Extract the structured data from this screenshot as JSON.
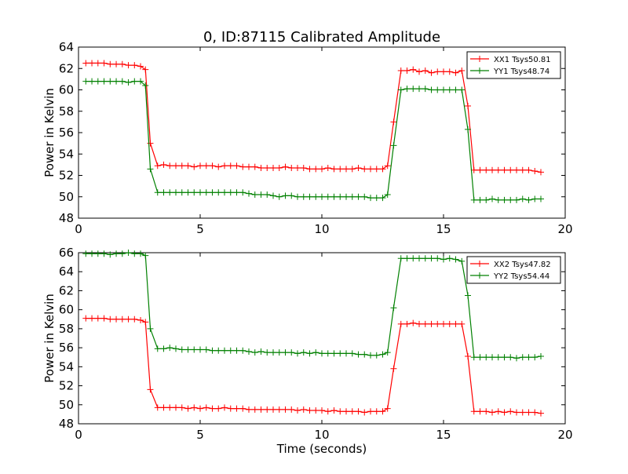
{
  "figure": {
    "title": "0, ID:87115 Calibrated Amplitude"
  },
  "chart_data": [
    {
      "type": "line",
      "xlabel": "",
      "ylabel": "Power in Kelvin",
      "xlim": [
        0,
        20
      ],
      "ylim": [
        48,
        64
      ],
      "xticks": [
        0,
        5,
        10,
        15,
        20
      ],
      "yticks": [
        48,
        50,
        52,
        54,
        56,
        58,
        60,
        62,
        64
      ],
      "grid": false,
      "legend": "top-right",
      "x": [
        0.3,
        0.55,
        0.8,
        1.05,
        1.3,
        1.55,
        1.8,
        2.05,
        2.3,
        2.55,
        2.75,
        2.95,
        3.25,
        3.5,
        3.75,
        4.0,
        4.25,
        4.5,
        4.75,
        5.0,
        5.25,
        5.5,
        5.75,
        6.0,
        6.25,
        6.5,
        6.75,
        7.0,
        7.25,
        7.5,
        7.75,
        8.0,
        8.25,
        8.5,
        8.75,
        9.0,
        9.25,
        9.5,
        9.75,
        10.0,
        10.25,
        10.5,
        10.75,
        11.0,
        11.25,
        11.5,
        11.75,
        12.0,
        12.25,
        12.5,
        12.7,
        12.95,
        13.25,
        13.5,
        13.75,
        14.0,
        14.25,
        14.5,
        14.75,
        15.0,
        15.25,
        15.5,
        15.75,
        16.0,
        16.25,
        16.5,
        16.75,
        17.0,
        17.25,
        17.5,
        17.75,
        18.0,
        18.25,
        18.5,
        18.75,
        19.0
      ],
      "series": [
        {
          "name": "XX1 Tsys50.81",
          "color": "#ff0000",
          "values": [
            62.5,
            62.5,
            62.5,
            62.5,
            62.4,
            62.4,
            62.4,
            62.3,
            62.3,
            62.2,
            61.9,
            55.0,
            52.9,
            53.0,
            52.9,
            52.9,
            52.9,
            52.9,
            52.8,
            52.9,
            52.9,
            52.9,
            52.8,
            52.9,
            52.9,
            52.9,
            52.8,
            52.8,
            52.8,
            52.7,
            52.7,
            52.7,
            52.7,
            52.8,
            52.7,
            52.7,
            52.7,
            52.6,
            52.6,
            52.6,
            52.7,
            52.6,
            52.6,
            52.6,
            52.6,
            52.7,
            52.6,
            52.6,
            52.6,
            52.6,
            52.9,
            57.0,
            61.8,
            61.8,
            61.9,
            61.7,
            61.8,
            61.6,
            61.7,
            61.7,
            61.7,
            61.6,
            61.8,
            58.5,
            52.5,
            52.5,
            52.5,
            52.5,
            52.5,
            52.5,
            52.5,
            52.5,
            52.5,
            52.5,
            52.4,
            52.3
          ]
        },
        {
          "name": "YY1 Tsys48.74",
          "color": "#008000",
          "values": [
            60.8,
            60.8,
            60.8,
            60.8,
            60.8,
            60.8,
            60.8,
            60.7,
            60.8,
            60.8,
            60.4,
            52.6,
            50.4,
            50.4,
            50.4,
            50.4,
            50.4,
            50.4,
            50.4,
            50.4,
            50.4,
            50.4,
            50.4,
            50.4,
            50.4,
            50.4,
            50.4,
            50.3,
            50.2,
            50.2,
            50.2,
            50.1,
            50.0,
            50.1,
            50.1,
            50.0,
            50.0,
            50.0,
            50.0,
            50.0,
            50.0,
            50.0,
            50.0,
            50.0,
            50.0,
            50.0,
            50.0,
            49.9,
            49.9,
            49.9,
            50.2,
            54.8,
            60.0,
            60.1,
            60.1,
            60.1,
            60.1,
            60.0,
            60.0,
            60.0,
            60.0,
            60.0,
            60.0,
            56.3,
            49.7,
            49.7,
            49.7,
            49.8,
            49.7,
            49.7,
            49.7,
            49.7,
            49.8,
            49.7,
            49.8,
            49.8
          ]
        }
      ]
    },
    {
      "type": "line",
      "xlabel": "Time (seconds)",
      "ylabel": "Power in Kelvin",
      "xlim": [
        0,
        20
      ],
      "ylim": [
        48,
        66
      ],
      "xticks": [
        0,
        5,
        10,
        15,
        20
      ],
      "yticks": [
        48,
        50,
        52,
        54,
        56,
        58,
        60,
        62,
        64,
        66
      ],
      "grid": false,
      "legend": "top-right",
      "x": [
        0.3,
        0.55,
        0.8,
        1.05,
        1.3,
        1.55,
        1.8,
        2.05,
        2.3,
        2.55,
        2.75,
        2.95,
        3.25,
        3.5,
        3.75,
        4.0,
        4.25,
        4.5,
        4.75,
        5.0,
        5.25,
        5.5,
        5.75,
        6.0,
        6.25,
        6.5,
        6.75,
        7.0,
        7.25,
        7.5,
        7.75,
        8.0,
        8.25,
        8.5,
        8.75,
        9.0,
        9.25,
        9.5,
        9.75,
        10.0,
        10.25,
        10.5,
        10.75,
        11.0,
        11.25,
        11.5,
        11.75,
        12.0,
        12.25,
        12.5,
        12.7,
        12.95,
        13.25,
        13.5,
        13.75,
        14.0,
        14.25,
        14.5,
        14.75,
        15.0,
        15.25,
        15.5,
        15.75,
        16.0,
        16.25,
        16.5,
        16.75,
        17.0,
        17.25,
        17.5,
        17.75,
        18.0,
        18.25,
        18.5,
        18.75,
        19.0
      ],
      "series": [
        {
          "name": "XX2 Tsys47.82",
          "color": "#ff0000",
          "values": [
            59.1,
            59.1,
            59.1,
            59.1,
            59.0,
            59.0,
            59.0,
            59.0,
            59.0,
            58.9,
            58.7,
            51.6,
            49.7,
            49.7,
            49.7,
            49.7,
            49.7,
            49.6,
            49.7,
            49.6,
            49.7,
            49.6,
            49.6,
            49.7,
            49.6,
            49.6,
            49.6,
            49.5,
            49.5,
            49.5,
            49.5,
            49.5,
            49.5,
            49.5,
            49.5,
            49.4,
            49.5,
            49.4,
            49.4,
            49.4,
            49.3,
            49.4,
            49.3,
            49.3,
            49.3,
            49.3,
            49.2,
            49.3,
            49.3,
            49.3,
            49.6,
            53.8,
            58.5,
            58.5,
            58.6,
            58.5,
            58.5,
            58.5,
            58.5,
            58.5,
            58.5,
            58.5,
            58.5,
            55.1,
            49.3,
            49.3,
            49.3,
            49.2,
            49.3,
            49.2,
            49.3,
            49.2,
            49.2,
            49.2,
            49.2,
            49.1
          ]
        },
        {
          "name": "YY2 Tsys54.44",
          "color": "#008000",
          "values": [
            65.9,
            65.9,
            65.9,
            65.9,
            65.8,
            65.9,
            65.9,
            66.0,
            65.9,
            65.9,
            65.7,
            58.0,
            55.9,
            55.9,
            56.0,
            55.9,
            55.8,
            55.8,
            55.8,
            55.8,
            55.8,
            55.7,
            55.7,
            55.7,
            55.7,
            55.7,
            55.7,
            55.6,
            55.5,
            55.6,
            55.5,
            55.5,
            55.5,
            55.5,
            55.5,
            55.4,
            55.5,
            55.4,
            55.5,
            55.4,
            55.4,
            55.4,
            55.4,
            55.4,
            55.4,
            55.3,
            55.3,
            55.2,
            55.2,
            55.3,
            55.5,
            60.2,
            65.4,
            65.4,
            65.4,
            65.4,
            65.4,
            65.4,
            65.4,
            65.3,
            65.4,
            65.3,
            65.1,
            61.5,
            55.0,
            55.0,
            55.0,
            55.0,
            55.0,
            55.0,
            55.0,
            54.9,
            55.0,
            55.0,
            55.0,
            55.1
          ]
        }
      ]
    }
  ]
}
